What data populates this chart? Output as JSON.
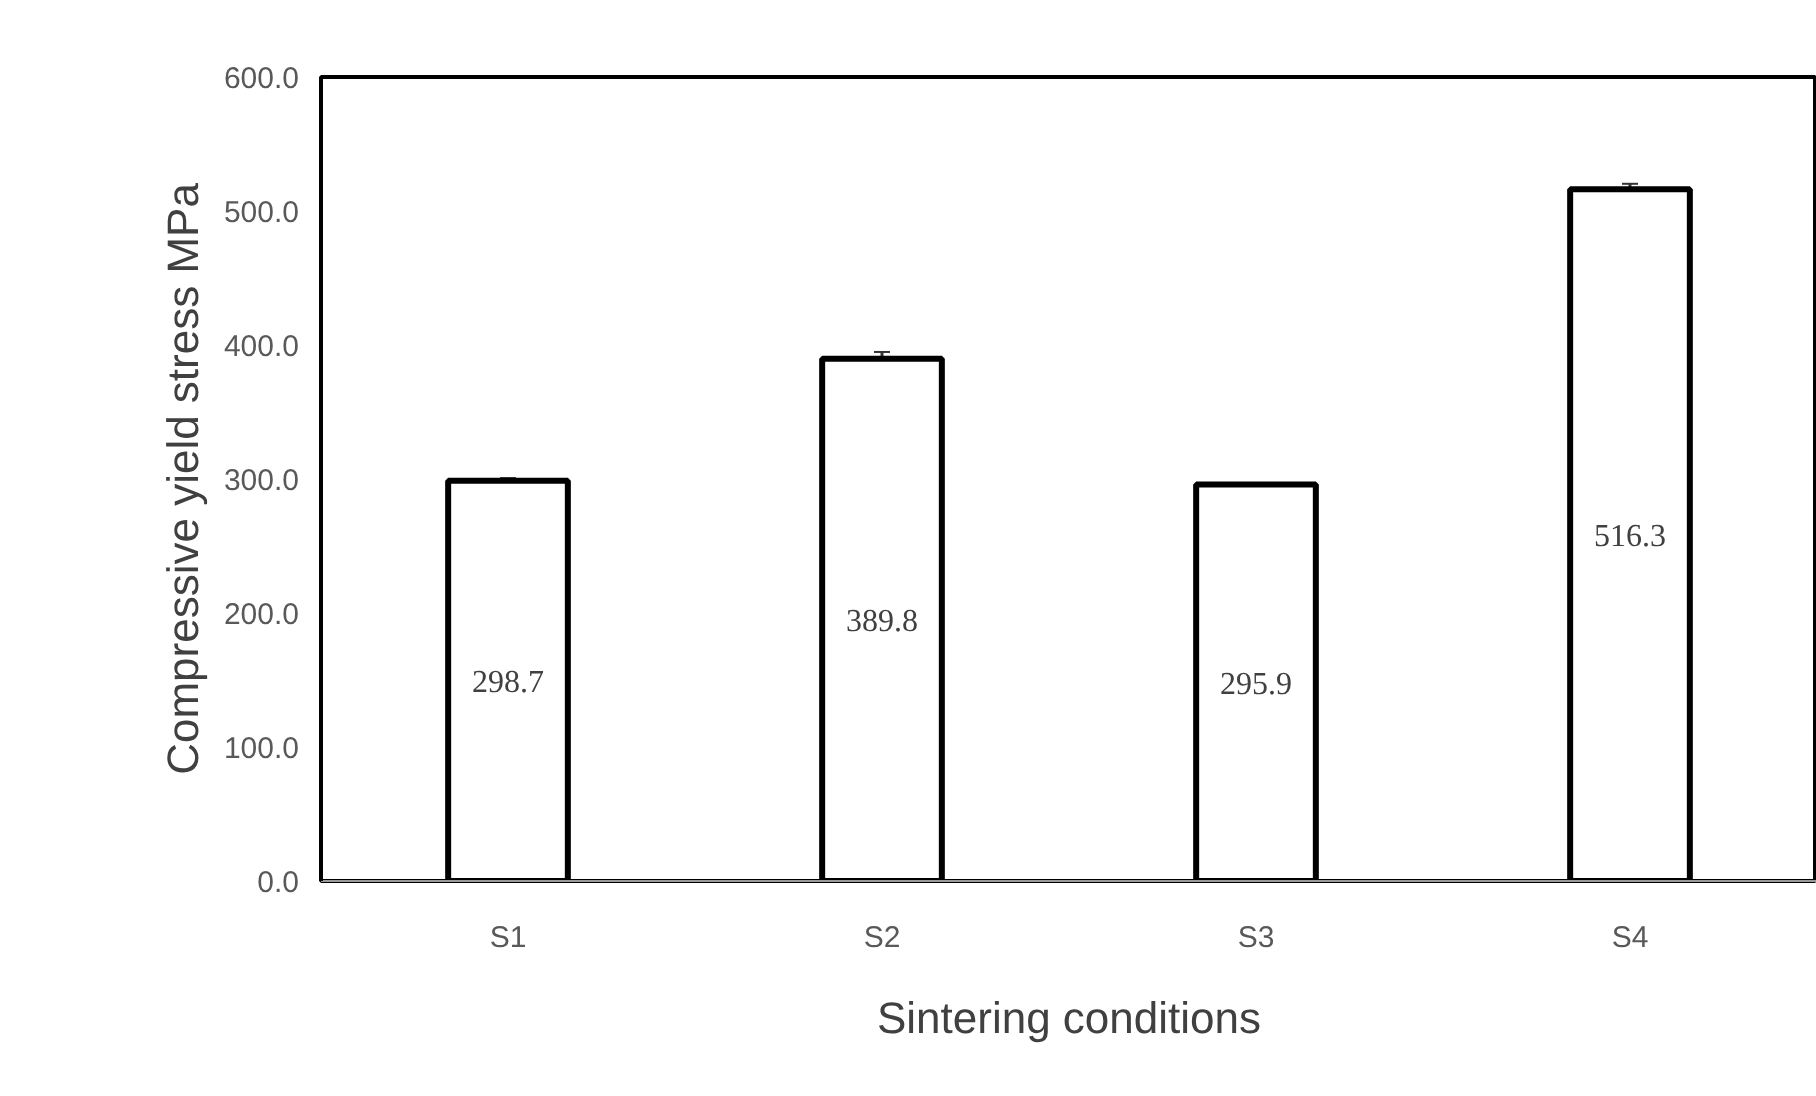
{
  "chart_data": {
    "type": "bar",
    "xlabel": "Sintering conditions",
    "ylabel": "Compressive yield stress MPa",
    "categories": [
      "S1",
      "S2",
      "S3",
      "S4"
    ],
    "values": [
      298.7,
      389.8,
      295.9,
      516.3
    ],
    "errors": [
      2,
      5,
      1,
      4
    ],
    "color": "#ffffff",
    "data_labels": true,
    "ylim": [
      0,
      600
    ],
    "yticks": [
      {
        "value": 0,
        "label": "0.0"
      },
      {
        "value": 100,
        "label": "100.0"
      },
      {
        "value": 200,
        "label": "200.0"
      },
      {
        "value": 300,
        "label": "300.0"
      },
      {
        "value": 400,
        "label": "400.0"
      },
      {
        "value": 500,
        "label": "500.0"
      },
      {
        "value": 600,
        "label": "600.0"
      }
    ],
    "grid": false
  }
}
